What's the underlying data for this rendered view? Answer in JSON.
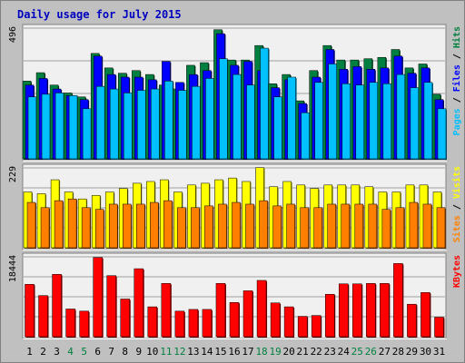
{
  "title": "Daily usage for July 2015",
  "colors": {
    "frame_bg": "#c0c0c0",
    "panel_bg": "#f0f0f0",
    "title": "#0000c0",
    "hits": "#008040",
    "files": "#0000ff",
    "pages": "#00c0ff",
    "visits": "#ffff00",
    "sites": "#ff8000",
    "kbytes": "#ff0000",
    "weekend_label": "#008040",
    "weekday_label": "#000000"
  },
  "chart_data": {
    "type": "bar",
    "title": "Daily usage for July 2015",
    "categories": [
      "1",
      "2",
      "3",
      "4",
      "5",
      "6",
      "7",
      "8",
      "9",
      "10",
      "11",
      "12",
      "13",
      "14",
      "15",
      "16",
      "17",
      "18",
      "19",
      "20",
      "21",
      "22",
      "23",
      "24",
      "25",
      "26",
      "27",
      "28",
      "29",
      "30",
      "31"
    ],
    "weekend_days": [
      "4",
      "5",
      "11",
      "12",
      "18",
      "19",
      "25",
      "26"
    ],
    "panels": [
      {
        "id": "hits-files-pages",
        "axis_max_label": "496",
        "ylim": [
          0,
          496
        ],
        "legend": [
          "Pages",
          "Files",
          "Hits"
        ],
        "series": [
          {
            "name": "Hits",
            "values": [
              295,
              327,
              280,
              250,
              235,
              400,
              345,
              325,
              335,
              320,
              280,
              265,
              355,
              365,
              490,
              375,
              375,
              430,
              285,
              320,
              220,
              335,
              430,
              375,
              375,
              380,
              385,
              415,
              345,
              360,
              245
            ]
          },
          {
            "name": "Files",
            "values": [
              280,
              305,
              265,
              240,
              225,
              390,
              320,
              310,
              310,
              300,
              370,
              290,
              320,
              335,
              475,
              355,
              370,
              335,
              270,
              300,
              210,
              310,
              415,
              340,
              350,
              340,
              345,
              390,
              325,
              345,
              225
            ]
          },
          {
            "name": "Pages",
            "values": [
              235,
              245,
              250,
              240,
              190,
              275,
              265,
              250,
              260,
              265,
              295,
              260,
              275,
              305,
              380,
              320,
              280,
              420,
              235,
              310,
              175,
              290,
              360,
              285,
              280,
              290,
              285,
              320,
              270,
              290,
              190
            ]
          }
        ]
      },
      {
        "id": "visits-sites",
        "axis_max_label": "229",
        "ylim": [
          0,
          229
        ],
        "legend": [
          "Sites",
          "Visits"
        ],
        "series": [
          {
            "name": "Visits",
            "values": [
              160,
              155,
              195,
              160,
              140,
              150,
              160,
              170,
              185,
              190,
              195,
              160,
              180,
              185,
              195,
              200,
              190,
              230,
              175,
              190,
              180,
              170,
              180,
              180,
              180,
              175,
              160,
              160,
              180,
              180,
              160
            ]
          },
          {
            "name": "Sites",
            "values": [
              130,
              115,
              135,
              140,
              115,
              110,
              125,
              125,
              125,
              130,
              135,
              115,
              115,
              120,
              125,
              130,
              125,
              135,
              120,
              125,
              115,
              115,
              125,
              125,
              125,
              125,
              110,
              115,
              130,
              125,
              115
            ]
          }
        ]
      },
      {
        "id": "kbytes",
        "axis_max_label": "18444",
        "ylim": [
          0,
          18444
        ],
        "legend": [
          "KBytes"
        ],
        "series": [
          {
            "name": "KBytes",
            "values": [
              12100,
              9500,
              14400,
              6400,
              5900,
              18300,
              14100,
              8700,
              15700,
              6900,
              12300,
              5900,
              6300,
              6300,
              12300,
              7900,
              10600,
              13000,
              7800,
              6900,
              4700,
              4900,
              9800,
              12200,
              12200,
              12300,
              12300,
              16900,
              7500,
              10200,
              4500
            ]
          }
        ]
      }
    ]
  }
}
